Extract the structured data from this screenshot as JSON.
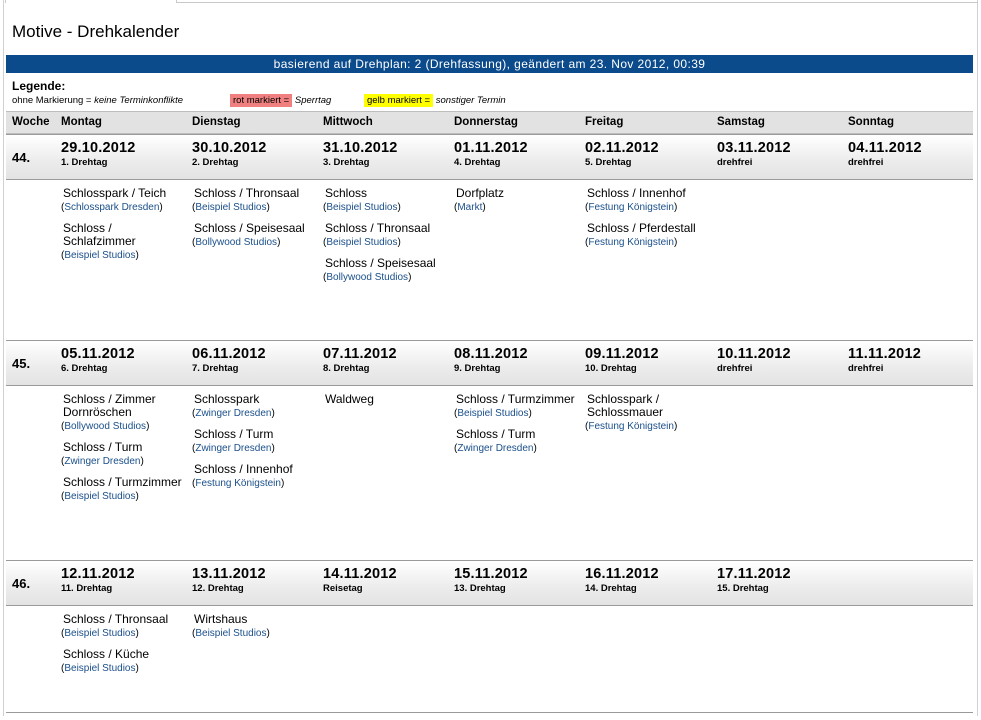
{
  "title": "Motive - Drehkalender",
  "banner": "basierend auf Drehplan: 2 (Drehfassung), geändert am 23. Nov 2012, 00:39",
  "legend": {
    "title": "Legende:",
    "none_prefix": "ohne Markierung = ",
    "none_text": "keine Terminkonflikte",
    "red_label": "rot markiert =",
    "red_text": "Sperrtag",
    "yellow_label": "gelb markiert =",
    "yellow_text": "sonstiger Termin",
    "colors": {
      "red": "#f08080",
      "yellow": "#ffff00"
    }
  },
  "headers": [
    "Woche",
    "Montag",
    "Dienstag",
    "Mittwoch",
    "Donnerstag",
    "Freitag",
    "Samstag",
    "Sonntag"
  ],
  "weeks": [
    {
      "number": "44.",
      "days": [
        {
          "date": "29.10.2012",
          "tag": "1. Drehtag"
        },
        {
          "date": "30.10.2012",
          "tag": "2. Drehtag"
        },
        {
          "date": "31.10.2012",
          "tag": "3. Drehtag"
        },
        {
          "date": "01.11.2012",
          "tag": "4. Drehtag"
        },
        {
          "date": "02.11.2012",
          "tag": "5. Drehtag"
        },
        {
          "date": "03.11.2012",
          "tag": "drehfrei"
        },
        {
          "date": "04.11.2012",
          "tag": "drehfrei"
        }
      ],
      "motives": [
        [
          {
            "name": "Schlosspark / Teich",
            "loc": "Schlosspark Dresden"
          },
          {
            "name": "Schloss / Schlafzimmer",
            "loc": "Beispiel Studios"
          }
        ],
        [
          {
            "name": "Schloss / Thronsaal",
            "loc": "Beispiel Studios"
          },
          {
            "name": "Schloss / Speisesaal",
            "loc": "Bollywood Studios"
          }
        ],
        [
          {
            "name": "Schloss",
            "loc": "Beispiel Studios"
          },
          {
            "name": "Schloss / Thronsaal",
            "loc": "Beispiel Studios"
          },
          {
            "name": "Schloss / Speisesaal",
            "loc": "Bollywood Studios"
          }
        ],
        [
          {
            "name": "Dorfplatz",
            "loc": "Markt"
          }
        ],
        [
          {
            "name": "Schloss / Innenhof",
            "loc": "Festung Königstein"
          },
          {
            "name": "Schloss / Pferdestall",
            "loc": "Festung Königstein"
          }
        ],
        [],
        []
      ]
    },
    {
      "number": "45.",
      "days": [
        {
          "date": "05.11.2012",
          "tag": "6. Drehtag"
        },
        {
          "date": "06.11.2012",
          "tag": "7. Drehtag"
        },
        {
          "date": "07.11.2012",
          "tag": "8. Drehtag"
        },
        {
          "date": "08.11.2012",
          "tag": "9. Drehtag"
        },
        {
          "date": "09.11.2012",
          "tag": "10. Drehtag"
        },
        {
          "date": "10.11.2012",
          "tag": "drehfrei"
        },
        {
          "date": "11.11.2012",
          "tag": "drehfrei"
        }
      ],
      "motives": [
        [
          {
            "name": "Schloss / Zimmer Dornröschen",
            "loc": "Bollywood Studios"
          },
          {
            "name": "Schloss / Turm",
            "loc": "Zwinger Dresden"
          },
          {
            "name": "Schloss / Turmzimmer",
            "loc": "Beispiel Studios"
          }
        ],
        [
          {
            "name": "Schlosspark",
            "loc": "Zwinger Dresden"
          },
          {
            "name": "Schloss / Turm",
            "loc": "Zwinger Dresden"
          },
          {
            "name": "Schloss / Innenhof",
            "loc": "Festung Königstein"
          }
        ],
        [
          {
            "name": "Waldweg",
            "loc": ""
          }
        ],
        [
          {
            "name": "Schloss / Turmzimmer",
            "loc": "Beispiel Studios"
          },
          {
            "name": "Schloss / Turm",
            "loc": "Zwinger Dresden"
          }
        ],
        [
          {
            "name": "Schlosspark / Schlossmauer",
            "loc": "Festung Königstein"
          }
        ],
        [],
        []
      ]
    },
    {
      "number": "46.",
      "days": [
        {
          "date": "12.11.2012",
          "tag": "11. Drehtag"
        },
        {
          "date": "13.11.2012",
          "tag": "12. Drehtag"
        },
        {
          "date": "14.11.2012",
          "tag": "Reisetag"
        },
        {
          "date": "15.11.2012",
          "tag": "13. Drehtag"
        },
        {
          "date": "16.11.2012",
          "tag": "14. Drehtag"
        },
        {
          "date": "17.11.2012",
          "tag": "15. Drehtag"
        },
        {
          "date": "",
          "tag": ""
        }
      ],
      "motives": [
        [
          {
            "name": "Schloss / Thronsaal",
            "loc": "Beispiel Studios"
          },
          {
            "name": "Schloss / Küche",
            "loc": "Beispiel Studios"
          }
        ],
        [
          {
            "name": "Wirtshaus",
            "loc": "Beispiel Studios"
          }
        ],
        [],
        [],
        [],
        [],
        []
      ]
    }
  ]
}
